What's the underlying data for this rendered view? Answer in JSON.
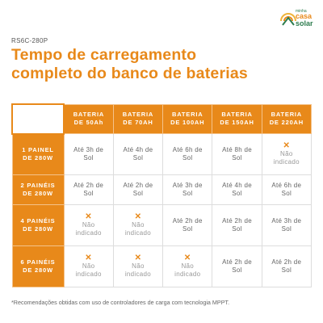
{
  "logo": {
    "line1": "minha",
    "line2": "casa",
    "line3": "solar"
  },
  "code": "RS6C-280P",
  "title": {
    "line1": "Tempo de carregamento",
    "line2": "completo do banco de baterias"
  },
  "table": {
    "columns": [
      "BATERIA DE 50Ah",
      "BATERIA DE 70AH",
      "BATERIA DE 100AH",
      "BATERIA DE 150AH",
      "BATERIA DE 220AH"
    ],
    "not_indicated": "Não indicado",
    "rows": [
      {
        "label": "1 PAINEL DE 280W",
        "cells": [
          "Até 3h de Sol",
          "Até 4h de Sol",
          "Até 6h de Sol",
          "Até 8h de Sol",
          null
        ]
      },
      {
        "label": "2 PAINÉIS DE 280W",
        "cells": [
          "Até 2h de Sol",
          "Até 2h de Sol",
          "Até 3h de Sol",
          "Até 4h de Sol",
          "Até 6h de Sol"
        ]
      },
      {
        "label": "4 PAINÉIS DE 280W",
        "cells": [
          null,
          null,
          "Até 2h de Sol",
          "Até 2h de Sol",
          "Até 3h de Sol"
        ]
      },
      {
        "label": "6 PAINÉIS DE 280W",
        "cells": [
          null,
          null,
          null,
          "Até 2h de Sol",
          "Até 2h de Sol"
        ]
      }
    ]
  },
  "footnote": "*Recomendações obtidas com uso de controladores de carga com tecnologia MPPT."
}
